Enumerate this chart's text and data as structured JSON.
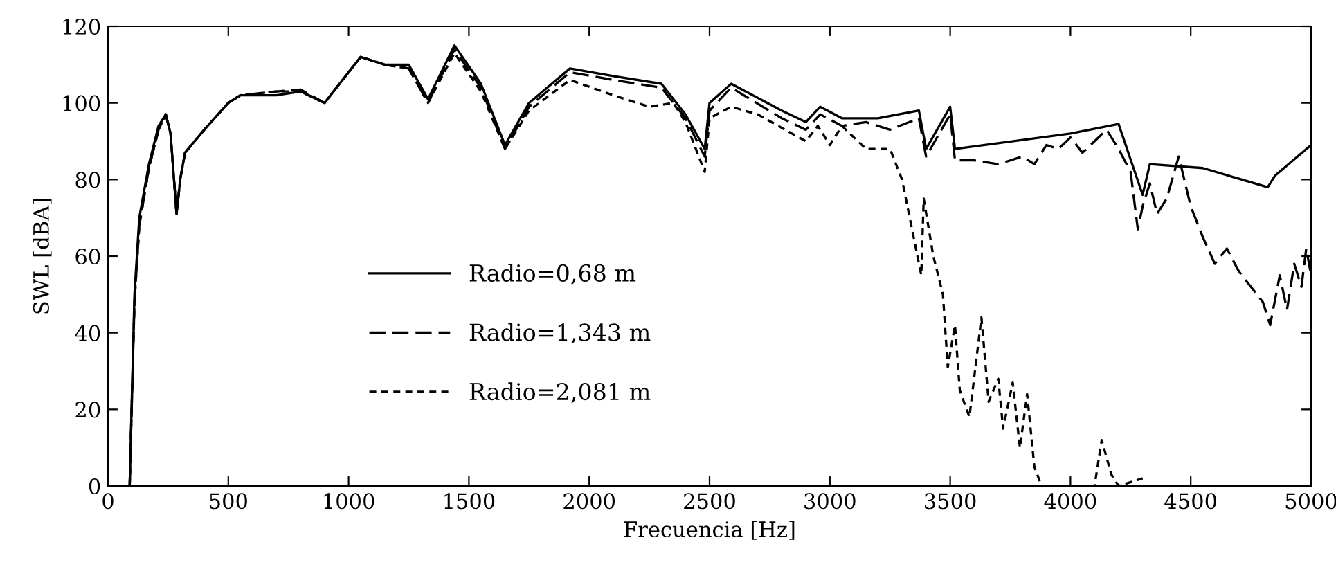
{
  "chart_data": {
    "type": "line",
    "xlabel": "Frecuencia [Hz]",
    "ylabel": "SWL [dBA]",
    "xlim": [
      0,
      5000
    ],
    "ylim": [
      0,
      120
    ],
    "xticks": [
      0,
      500,
      1000,
      1500,
      2000,
      2500,
      3000,
      3500,
      4000,
      4500,
      5000
    ],
    "yticks": [
      0,
      20,
      40,
      60,
      80,
      100,
      120
    ],
    "grid": false,
    "legend": "center left",
    "marker": "none",
    "series": [
      {
        "name": "Radio=0,68 m",
        "color": "#000000",
        "line_style": "solid",
        "x": [
          90,
          110,
          130,
          170,
          210,
          240,
          260,
          285,
          300,
          320,
          400,
          500,
          550,
          700,
          800,
          900,
          1050,
          1150,
          1250,
          1330,
          1440,
          1550,
          1650,
          1750,
          1920,
          2100,
          2300,
          2400,
          2480,
          2500,
          2590,
          2800,
          2900,
          2960,
          3050,
          3200,
          3370,
          3400,
          3500,
          3520,
          4000,
          4200,
          4300,
          4330,
          4550,
          4820,
          4850,
          5000
        ],
        "values": [
          0,
          50,
          70,
          84,
          94,
          97,
          92,
          71,
          80,
          87,
          93,
          100,
          102,
          102,
          103,
          100,
          112,
          110,
          110,
          101,
          115,
          105,
          89,
          100,
          109,
          107,
          105,
          97,
          88,
          100,
          105,
          98,
          95,
          99,
          96,
          96,
          98,
          88,
          99,
          88,
          92,
          94.5,
          76,
          84,
          83,
          78,
          81,
          89
        ]
      },
      {
        "name": "Radio=1,343 m",
        "color": "#000000",
        "line_style": "dashed",
        "x": [
          90,
          110,
          130,
          170,
          210,
          240,
          260,
          285,
          300,
          320,
          400,
          500,
          550,
          700,
          800,
          900,
          1050,
          1150,
          1250,
          1330,
          1440,
          1550,
          1650,
          1750,
          1920,
          2100,
          2300,
          2400,
          2480,
          2500,
          2590,
          2800,
          2900,
          2960,
          3050,
          3150,
          3250,
          3370,
          3400,
          3500,
          3520,
          3600,
          3700,
          3800,
          3850,
          3900,
          3950,
          4000,
          4050,
          4100,
          4150,
          4200,
          4250,
          4280,
          4300,
          4330,
          4360,
          4400,
          4450,
          4500,
          4550,
          4600,
          4650,
          4700,
          4750,
          4800,
          4830,
          4870,
          4900,
          4930,
          4960,
          4980,
          5000
        ],
        "values": [
          0,
          48,
          68,
          83,
          93,
          97,
          92,
          71,
          80,
          87,
          93,
          100,
          102,
          103,
          103.5,
          100,
          112,
          110,
          109,
          100,
          114,
          104,
          88,
          99,
          108,
          106,
          104,
          96,
          86,
          98,
          104,
          96,
          93,
          97,
          94,
          95,
          93,
          96,
          86,
          97,
          85,
          85,
          84,
          86,
          84,
          89,
          88,
          91,
          87,
          90,
          93,
          88,
          82,
          67,
          73,
          79,
          71,
          75,
          86,
          73,
          65,
          58,
          62,
          56,
          52,
          48,
          42,
          55,
          46,
          58,
          52,
          62,
          55
        ]
      },
      {
        "name": "Radio=2,081 m",
        "color": "#000000",
        "line_style": "dotted",
        "x": [
          90,
          110,
          130,
          170,
          210,
          240,
          260,
          285,
          300,
          320,
          400,
          500,
          550,
          700,
          800,
          900,
          1050,
          1150,
          1250,
          1330,
          1440,
          1550,
          1650,
          1750,
          1920,
          2100,
          2250,
          2350,
          2400,
          2480,
          2500,
          2590,
          2700,
          2900,
          2950,
          3000,
          3050,
          3150,
          3250,
          3300,
          3380,
          3390,
          3430,
          3470,
          3490,
          3520,
          3540,
          3580,
          3630,
          3660,
          3700,
          3720,
          3760,
          3790,
          3820,
          3850,
          3880,
          3950,
          4100,
          4130,
          4170,
          4200,
          4300
        ],
        "values": [
          0,
          48,
          68,
          83,
          93,
          97,
          92,
          71,
          80,
          87,
          93,
          100,
          102,
          103,
          103,
          100,
          112,
          110,
          109,
          100,
          113,
          103,
          88,
          98,
          106,
          102,
          99,
          100,
          95,
          82,
          96,
          99,
          97,
          90,
          94,
          89,
          94,
          88,
          88,
          80,
          55,
          75,
          60,
          50,
          31,
          42,
          25,
          18,
          44,
          22,
          28,
          15,
          27,
          10,
          24,
          5,
          0,
          0,
          0,
          12,
          3,
          0,
          2
        ]
      }
    ]
  }
}
